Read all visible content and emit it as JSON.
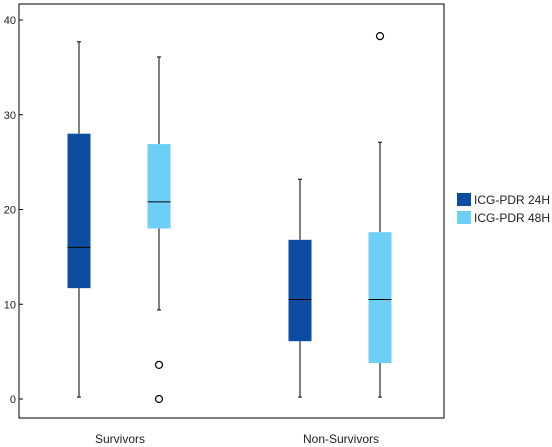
{
  "chart_data": {
    "type": "boxplot",
    "title": "",
    "xlabel": "",
    "ylabel": "",
    "ylim": [
      0,
      40
    ],
    "yticks": [
      0,
      10,
      20,
      30,
      40
    ],
    "categories": [
      "Survivors",
      "Non-Survivors"
    ],
    "grid": false,
    "legend_position": "right",
    "series": [
      {
        "name": "ICG-PDR 24H",
        "color": "#0c4da2",
        "boxes": [
          {
            "category": "Survivors",
            "min": 0.2,
            "q1": 11.7,
            "median": 16.0,
            "q3": 28.0,
            "max": 37.7,
            "outliers": []
          },
          {
            "category": "Non-Survivors",
            "min": 0.2,
            "q1": 6.1,
            "median": 10.5,
            "q3": 16.8,
            "max": 23.2,
            "outliers": []
          }
        ]
      },
      {
        "name": "ICG-PDR 48H",
        "color": "#6dcff6",
        "boxes": [
          {
            "category": "Survivors",
            "min": 9.4,
            "q1": 18.0,
            "median": 20.8,
            "q3": 26.9,
            "max": 36.1,
            "outliers": [
              3.6,
              0.0
            ]
          },
          {
            "category": "Non-Survivors",
            "min": 0.2,
            "q1": 3.8,
            "median": 10.5,
            "q3": 17.6,
            "max": 27.1,
            "outliers": [
              38.3
            ]
          }
        ]
      }
    ]
  }
}
